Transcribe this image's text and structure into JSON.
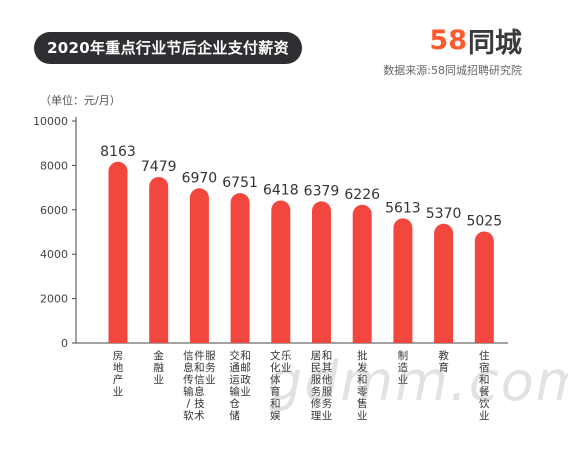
{
  "header": {
    "title": "2020年重点行业节后企业支付薪资",
    "brand_number": "58",
    "brand_name": "同城",
    "source": "数据来源:58同城招聘研究院",
    "unit": "（单位：元/月）"
  },
  "watermark": "gdmm.com",
  "colors": {
    "bar": "#f2473f",
    "title_bg": "#2f2f33",
    "brand_accent": "#ff5a2e"
  },
  "chart_data": {
    "type": "bar",
    "title": "2020年重点行业节后企业支付薪资",
    "ylabel": "（单位：元/月）",
    "xlabel": "",
    "ylim": [
      0,
      10000
    ],
    "yticks": [
      0,
      2000,
      4000,
      6000,
      8000,
      10000
    ],
    "grid": false,
    "categories": [
      "房地产业",
      "金融业",
      "信息传输/软件和信息技术服务业",
      "交通运输仓储和邮政业",
      "文化体育和娱乐业",
      "居民服务修理和其他服务业",
      "批发和零售业",
      "制造业",
      "教育",
      "住宿和餐饮业"
    ],
    "values": [
      8163,
      7479,
      6970,
      6751,
      6418,
      6379,
      6226,
      5613,
      5370,
      5025
    ]
  }
}
